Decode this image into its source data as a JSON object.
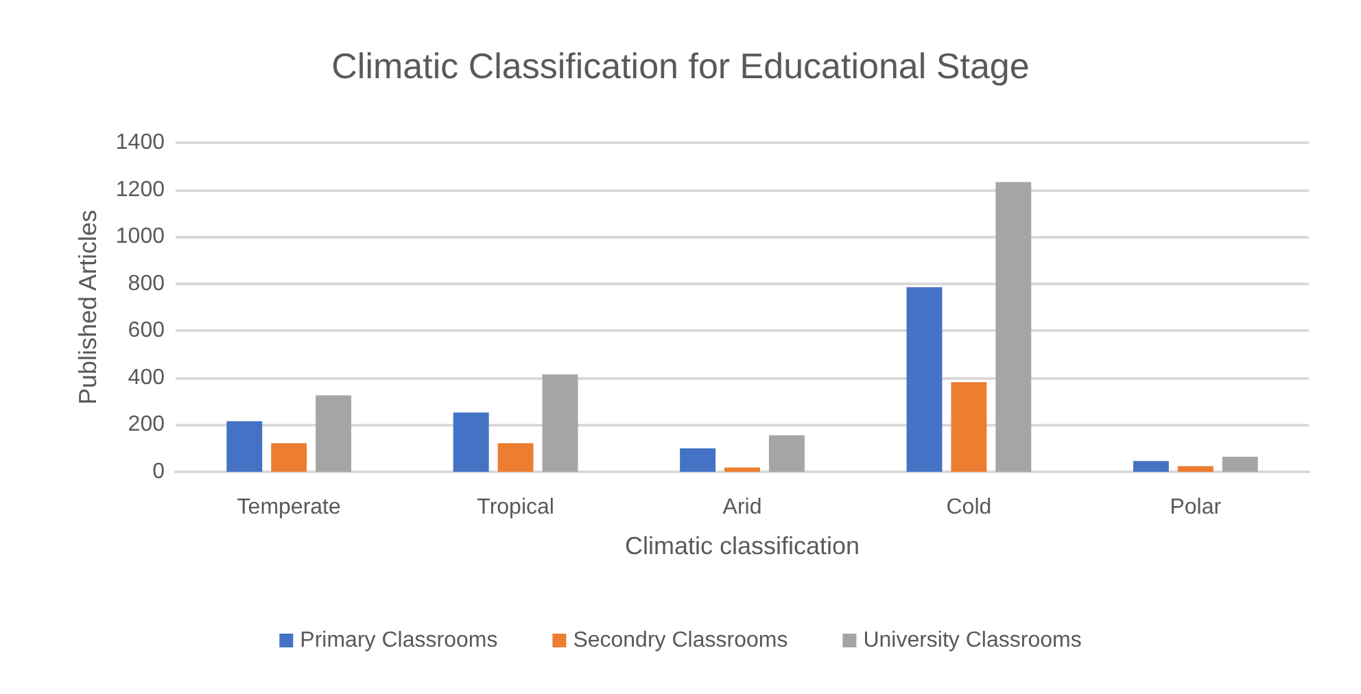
{
  "chart_data": {
    "type": "bar",
    "title": "Climatic Classification for Educational Stage",
    "xlabel": "Climatic classification",
    "ylabel": "Published Articles",
    "categories": [
      "Temperate",
      "Tropical",
      "Arid",
      "Cold",
      "Polar"
    ],
    "series": [
      {
        "name": "Primary Classrooms",
        "color": "#4472c4",
        "values": [
          215,
          252,
          100,
          785,
          46
        ]
      },
      {
        "name": "Secondry Classrooms",
        "color": "#ed7d31",
        "values": [
          122,
          122,
          18,
          381,
          24
        ]
      },
      {
        "name": "University Classrooms",
        "color": "#a5a5a5",
        "values": [
          325,
          414,
          155,
          1232,
          64
        ]
      }
    ],
    "ylim": [
      0,
      1400
    ],
    "yticks": [
      0,
      200,
      400,
      600,
      800,
      1000,
      1200,
      1400
    ],
    "grid": "y",
    "legend": "bottom"
  }
}
